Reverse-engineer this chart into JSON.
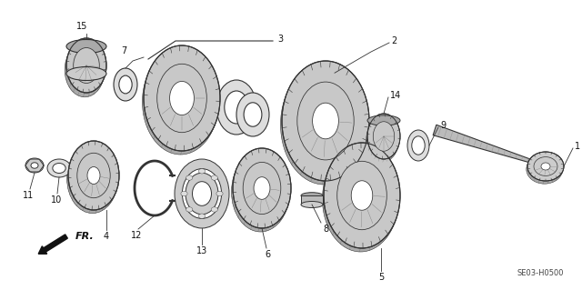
{
  "background_color": "#ffffff",
  "diagram_code": "SE03-H0500",
  "fr_label": "FR.",
  "line_color": "#222222",
  "text_color": "#111111",
  "gear_fill": "#d8d8d8",
  "gear_dark": "#333333",
  "gear_mid": "#aaaaaa",
  "gear_light": "#eeeeee",
  "shaft_fill": "#bbbbbb"
}
